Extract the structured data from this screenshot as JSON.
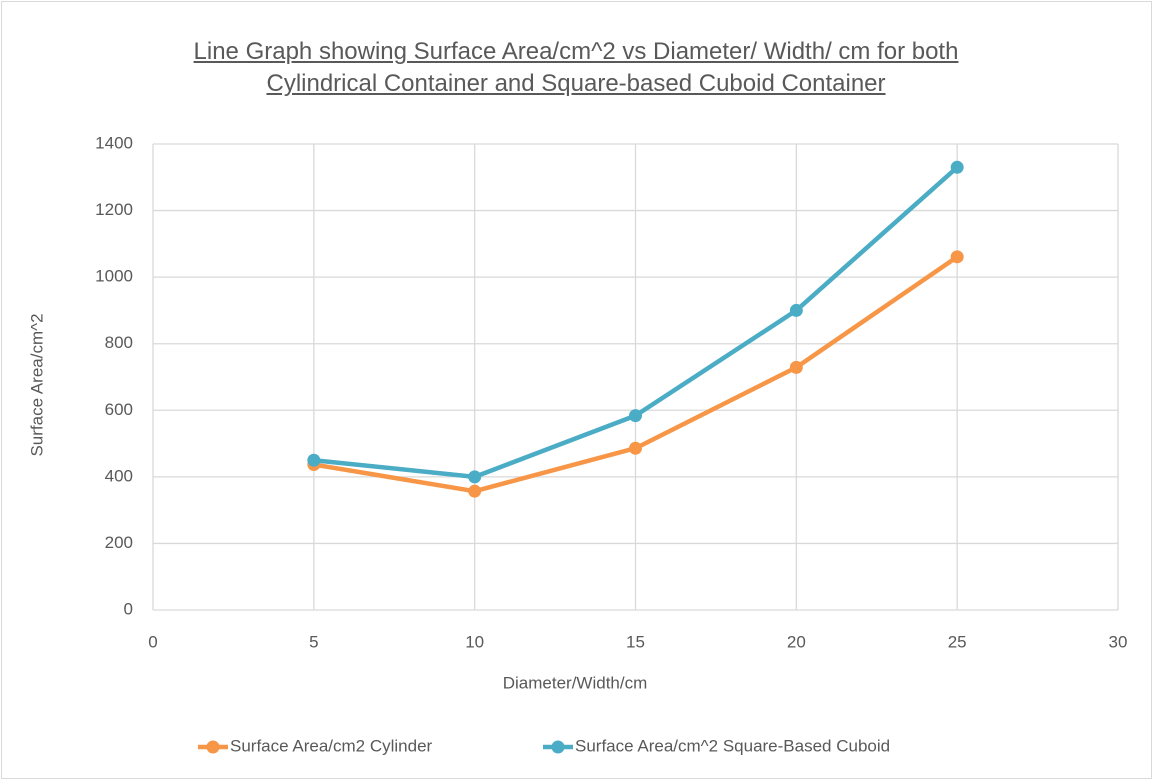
{
  "chart_data": {
    "type": "line",
    "title": "Line Graph showing Surface Area/cm^2 vs Diameter/ Width/ cm for both Cylindrical Container and Square-based Cuboid Container",
    "x_label": "Diameter/Width/cm",
    "y_label": "Surface Area/cm^2",
    "x": [
      5,
      10,
      15,
      20,
      25
    ],
    "series": [
      {
        "name": "Surface Area/cm2 Cylinder",
        "color": "#f79646",
        "values": [
          437,
          357,
          486,
          729,
          1061
        ]
      },
      {
        "name": "Surface Area/cm^2 Square-Based Cuboid",
        "color": "#4bacc6",
        "values": [
          450,
          400,
          584,
          900,
          1330
        ]
      }
    ],
    "xlim": [
      0,
      30
    ],
    "xticks": [
      0,
      5,
      10,
      15,
      20,
      25,
      30
    ],
    "ylim": [
      0,
      1400
    ],
    "yticks": [
      0,
      200,
      400,
      600,
      800,
      1000,
      1200,
      1400
    ],
    "grid": true,
    "legend": "bottom"
  }
}
